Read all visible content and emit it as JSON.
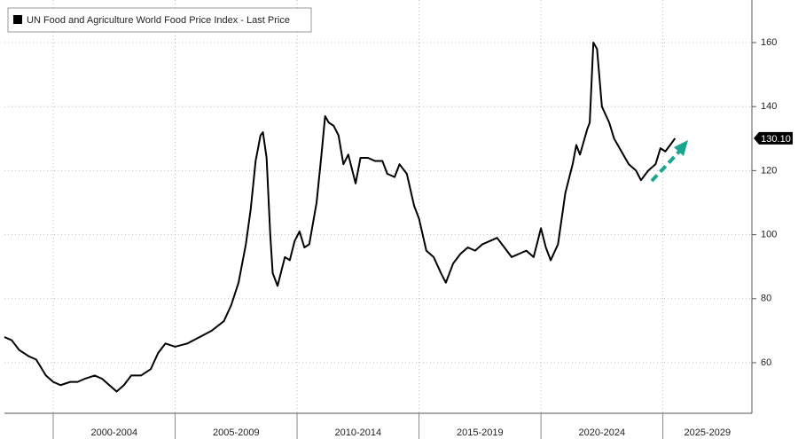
{
  "chart_data": {
    "type": "line",
    "grid": true,
    "ylim": [
      44.2,
      173.3
    ],
    "yticks": [
      60,
      80,
      100,
      120,
      140,
      160
    ],
    "xlim": [
      1998,
      2028.65
    ],
    "xticks": [
      2000,
      2005,
      2010,
      2015,
      2020,
      2025
    ],
    "period_labels": [
      "2000-2004",
      "2005-2009",
      "2010-2014",
      "2015-2019",
      "2020-2024",
      "2025-2029"
    ],
    "x": [
      1998.0,
      1998.3,
      1998.6,
      1999.0,
      1999.3,
      1999.7,
      2000.0,
      2000.3,
      2000.7,
      2001.0,
      2001.3,
      2001.7,
      2002.0,
      2002.3,
      2002.6,
      2002.9,
      2003.2,
      2003.6,
      2004.0,
      2004.3,
      2004.6,
      2005.0,
      2005.5,
      2006.0,
      2006.5,
      2007.0,
      2007.3,
      2007.6,
      2007.9,
      2008.1,
      2008.3,
      2008.5,
      2008.6,
      2008.75,
      2008.9,
      2009.0,
      2009.2,
      2009.5,
      2009.7,
      2009.9,
      2010.1,
      2010.3,
      2010.5,
      2010.8,
      2011.0,
      2011.15,
      2011.3,
      2011.5,
      2011.7,
      2011.9,
      2012.1,
      2012.3,
      2012.4,
      2012.6,
      2012.9,
      2013.2,
      2013.5,
      2013.7,
      2014.0,
      2014.2,
      2014.5,
      2014.8,
      2015.0,
      2015.3,
      2015.6,
      2015.9,
      2016.1,
      2016.4,
      2016.7,
      2017.0,
      2017.3,
      2017.6,
      2017.9,
      2018.2,
      2018.5,
      2018.8,
      2019.1,
      2019.4,
      2019.7,
      2020.0,
      2020.2,
      2020.4,
      2020.7,
      2021.0,
      2021.3,
      2021.45,
      2021.6,
      2021.9,
      2022.0,
      2022.15,
      2022.3,
      2022.5,
      2022.8,
      2023.0,
      2023.3,
      2023.6,
      2023.9,
      2024.1,
      2024.4,
      2024.7,
      2024.9,
      2025.1,
      2025.3,
      2025.5
    ],
    "series": [
      {
        "name": "UN Food and Agriculture World Food Price Index - Last Price",
        "color": "#000000",
        "values": [
          68,
          67,
          64,
          62,
          61,
          56,
          54,
          53,
          54,
          54,
          55,
          56,
          55,
          53,
          51,
          53,
          56,
          56,
          58,
          63,
          66,
          65,
          66,
          68,
          70,
          73,
          78,
          85,
          97,
          108,
          123,
          131,
          132,
          124,
          100,
          88,
          84,
          93,
          92,
          98,
          101,
          96,
          97,
          110,
          125,
          137,
          135,
          134,
          131,
          122,
          125,
          119,
          116,
          124,
          124,
          123,
          123,
          119,
          118,
          122,
          119,
          109,
          105,
          95,
          93,
          88,
          85,
          91,
          94,
          96,
          95,
          97,
          98,
          99,
          96,
          93,
          94,
          95,
          93,
          102,
          96,
          92,
          97,
          113,
          122,
          128,
          125,
          133,
          135,
          160,
          158,
          140,
          135,
          130,
          126,
          122,
          120,
          117,
          120,
          122,
          127,
          126,
          128,
          130.1
        ]
      }
    ],
    "last_price": {
      "value": 130.1,
      "label": "130.10"
    }
  }
}
